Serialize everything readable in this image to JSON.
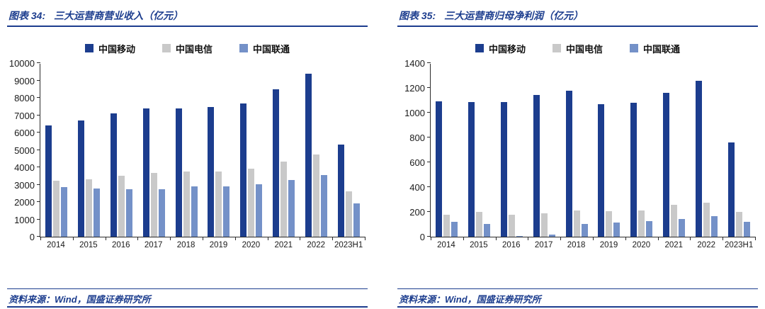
{
  "colors": {
    "accent": "#1c3d8e",
    "axis": "#2b2b2b"
  },
  "source_note": "资料来源：Wind，国盛证券研究所",
  "chart_data": [
    {
      "type": "bar",
      "figure_label": "图表 34:",
      "title": "三大运营商营业收入（亿元）",
      "categories": [
        "2014",
        "2015",
        "2016",
        "2017",
        "2018",
        "2019",
        "2020",
        "2021",
        "2022",
        "2023H1"
      ],
      "series": [
        {
          "name": "中国移动",
          "color": "#1c3d8e",
          "values": [
            6414,
            6683,
            7084,
            7405,
            7368,
            7459,
            7681,
            8483,
            9373,
            5307
          ]
        },
        {
          "name": "中国电信",
          "color": "#c9c9c9",
          "values": [
            3244,
            3312,
            3523,
            3662,
            3771,
            3757,
            3936,
            4342,
            4750,
            2607
          ]
        },
        {
          "name": "中国联通",
          "color": "#7491c8",
          "values": [
            2846,
            2771,
            2742,
            2748,
            2909,
            2905,
            3038,
            3279,
            3549,
            1918
          ]
        }
      ],
      "ylim": [
        0,
        10000
      ],
      "ytick_step": 1000,
      "grid": false,
      "legend_position": "top",
      "xlabel": "",
      "ylabel": ""
    },
    {
      "type": "bar",
      "figure_label": "图表 35:",
      "title": "三大运营商归母净利润（亿元）",
      "categories": [
        "2014",
        "2015",
        "2016",
        "2017",
        "2018",
        "2019",
        "2020",
        "2021",
        "2022",
        "2023H1"
      ],
      "series": [
        {
          "name": "中国移动",
          "color": "#1c3d8e",
          "values": [
            1093,
            1085,
            1087,
            1143,
            1178,
            1066,
            1078,
            1161,
            1255,
            762
          ]
        },
        {
          "name": "中国电信",
          "color": "#c9c9c9",
          "values": [
            177,
            200,
            180,
            186,
            212,
            205,
            209,
            259,
            276,
            202
          ]
        },
        {
          "name": "中国联通",
          "color": "#7491c8",
          "values": [
            121,
            105,
            6,
            18,
            102,
            113,
            125,
            144,
            167,
            118
          ]
        }
      ],
      "ylim": [
        0,
        1400
      ],
      "ytick_step": 200,
      "grid": false,
      "legend_position": "top",
      "xlabel": "",
      "ylabel": ""
    }
  ]
}
